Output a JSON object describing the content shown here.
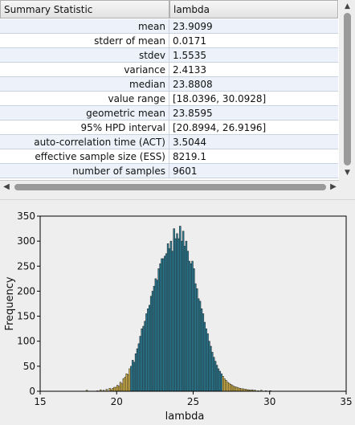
{
  "table": {
    "headers": [
      "Summary Statistic",
      "lambda"
    ],
    "rows": [
      {
        "stat": "mean",
        "value": "23.9099"
      },
      {
        "stat": "stderr of mean",
        "value": "0.0171"
      },
      {
        "stat": "stdev",
        "value": "1.5535"
      },
      {
        "stat": "variance",
        "value": "2.4133"
      },
      {
        "stat": "median",
        "value": "23.8808"
      },
      {
        "stat": "value range",
        "value": "[18.0396, 30.0928]"
      },
      {
        "stat": "geometric mean",
        "value": "23.8595"
      },
      {
        "stat": "95% HPD interval",
        "value": "[20.8994, 26.9196]"
      },
      {
        "stat": "auto-correlation time (ACT)",
        "value": "3.5044"
      },
      {
        "stat": "effective sample size (ESS)",
        "value": "8219.1"
      },
      {
        "stat": "number of samples",
        "value": "9601"
      }
    ]
  },
  "scrollbars": {
    "up_icon": "arrow-up-icon",
    "down_icon": "arrow-down-icon",
    "left_icon": "arrow-left-icon",
    "right_icon": "arrow-right-icon"
  },
  "chart_data": {
    "type": "bar",
    "xlabel": "lambda",
    "ylabel": "Frequency",
    "xlim": [
      15,
      35
    ],
    "ylim": [
      0,
      350
    ],
    "xticks": [
      15,
      20,
      25,
      30,
      35
    ],
    "yticks": [
      0,
      50,
      100,
      150,
      200,
      250,
      300,
      350
    ],
    "bin_width": 0.1,
    "hpd_interval": [
      20.8994,
      26.9196
    ],
    "colors": {
      "hpd": "#2a7d95",
      "tail": "#d4b44a",
      "edge": "#222222"
    },
    "bins": [
      {
        "x": 18.0,
        "count": 2
      },
      {
        "x": 18.7,
        "count": 1
      },
      {
        "x": 18.9,
        "count": 3
      },
      {
        "x": 19.1,
        "count": 2
      },
      {
        "x": 19.3,
        "count": 4
      },
      {
        "x": 19.5,
        "count": 6
      },
      {
        "x": 19.6,
        "count": 3
      },
      {
        "x": 19.7,
        "count": 6
      },
      {
        "x": 19.8,
        "count": 8
      },
      {
        "x": 19.9,
        "count": 8
      },
      {
        "x": 20.0,
        "count": 12
      },
      {
        "x": 20.1,
        "count": 10
      },
      {
        "x": 20.2,
        "count": 18
      },
      {
        "x": 20.3,
        "count": 15
      },
      {
        "x": 20.4,
        "count": 25
      },
      {
        "x": 20.5,
        "count": 28
      },
      {
        "x": 20.6,
        "count": 35
      },
      {
        "x": 20.7,
        "count": 33
      },
      {
        "x": 20.8,
        "count": 45
      },
      {
        "x": 20.9,
        "count": 50
      },
      {
        "x": 21.0,
        "count": 62
      },
      {
        "x": 21.1,
        "count": 58
      },
      {
        "x": 21.2,
        "count": 75
      },
      {
        "x": 21.3,
        "count": 85
      },
      {
        "x": 21.4,
        "count": 95
      },
      {
        "x": 21.5,
        "count": 110
      },
      {
        "x": 21.6,
        "count": 125
      },
      {
        "x": 21.7,
        "count": 130
      },
      {
        "x": 21.8,
        "count": 140
      },
      {
        "x": 21.9,
        "count": 155
      },
      {
        "x": 22.0,
        "count": 165
      },
      {
        "x": 22.1,
        "count": 172
      },
      {
        "x": 22.2,
        "count": 190
      },
      {
        "x": 22.3,
        "count": 200
      },
      {
        "x": 22.4,
        "count": 210
      },
      {
        "x": 22.5,
        "count": 225
      },
      {
        "x": 22.6,
        "count": 222
      },
      {
        "x": 22.7,
        "count": 245
      },
      {
        "x": 22.8,
        "count": 255
      },
      {
        "x": 22.9,
        "count": 265
      },
      {
        "x": 23.0,
        "count": 265
      },
      {
        "x": 23.1,
        "count": 270
      },
      {
        "x": 23.2,
        "count": 275
      },
      {
        "x": 23.3,
        "count": 295
      },
      {
        "x": 23.4,
        "count": 285
      },
      {
        "x": 23.5,
        "count": 300
      },
      {
        "x": 23.6,
        "count": 280
      },
      {
        "x": 23.7,
        "count": 325
      },
      {
        "x": 23.8,
        "count": 305
      },
      {
        "x": 23.9,
        "count": 315
      },
      {
        "x": 24.0,
        "count": 305
      },
      {
        "x": 24.1,
        "count": 330
      },
      {
        "x": 24.2,
        "count": 300
      },
      {
        "x": 24.3,
        "count": 320
      },
      {
        "x": 24.4,
        "count": 290
      },
      {
        "x": 24.5,
        "count": 300
      },
      {
        "x": 24.6,
        "count": 280
      },
      {
        "x": 24.7,
        "count": 260
      },
      {
        "x": 24.8,
        "count": 255
      },
      {
        "x": 24.9,
        "count": 260
      },
      {
        "x": 25.0,
        "count": 245
      },
      {
        "x": 25.1,
        "count": 215
      },
      {
        "x": 25.2,
        "count": 205
      },
      {
        "x": 25.3,
        "count": 185
      },
      {
        "x": 25.4,
        "count": 180
      },
      {
        "x": 25.5,
        "count": 165
      },
      {
        "x": 25.6,
        "count": 155
      },
      {
        "x": 25.7,
        "count": 138
      },
      {
        "x": 25.8,
        "count": 125
      },
      {
        "x": 25.9,
        "count": 115
      },
      {
        "x": 26.0,
        "count": 100
      },
      {
        "x": 26.1,
        "count": 90
      },
      {
        "x": 26.2,
        "count": 78
      },
      {
        "x": 26.3,
        "count": 68
      },
      {
        "x": 26.4,
        "count": 60
      },
      {
        "x": 26.5,
        "count": 52
      },
      {
        "x": 26.6,
        "count": 45
      },
      {
        "x": 26.7,
        "count": 40
      },
      {
        "x": 26.8,
        "count": 35
      },
      {
        "x": 26.9,
        "count": 30
      },
      {
        "x": 27.0,
        "count": 25
      },
      {
        "x": 27.1,
        "count": 22
      },
      {
        "x": 27.2,
        "count": 18
      },
      {
        "x": 27.3,
        "count": 16
      },
      {
        "x": 27.4,
        "count": 14
      },
      {
        "x": 27.5,
        "count": 12
      },
      {
        "x": 27.6,
        "count": 10
      },
      {
        "x": 27.7,
        "count": 9
      },
      {
        "x": 27.8,
        "count": 8
      },
      {
        "x": 27.9,
        "count": 7
      },
      {
        "x": 28.0,
        "count": 6
      },
      {
        "x": 28.1,
        "count": 5
      },
      {
        "x": 28.2,
        "count": 5
      },
      {
        "x": 28.3,
        "count": 4
      },
      {
        "x": 28.4,
        "count": 4
      },
      {
        "x": 28.5,
        "count": 3
      },
      {
        "x": 28.6,
        "count": 3
      },
      {
        "x": 28.7,
        "count": 2
      },
      {
        "x": 28.8,
        "count": 3
      },
      {
        "x": 28.9,
        "count": 2
      },
      {
        "x": 29.0,
        "count": 2
      },
      {
        "x": 29.2,
        "count": 1
      },
      {
        "x": 29.4,
        "count": 2
      },
      {
        "x": 29.7,
        "count": 1
      },
      {
        "x": 30.0,
        "count": 1
      }
    ]
  }
}
